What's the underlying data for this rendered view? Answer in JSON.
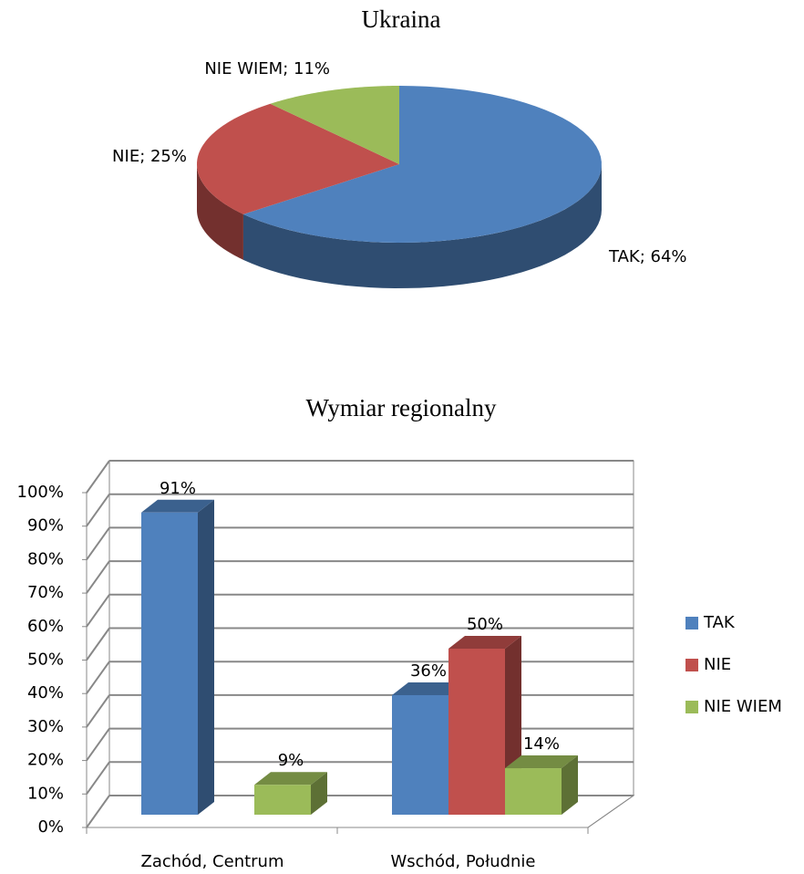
{
  "chart_data": [
    {
      "type": "pie",
      "title": "Ukraina",
      "categories": [
        "TAK",
        "NIE",
        "NIE WIEM"
      ],
      "values": [
        64,
        25,
        11
      ],
      "value_labels": [
        "TAK; 64%",
        "NIE; 25%",
        "NIE WIEM; 11%"
      ],
      "colors": [
        "#4f81bd",
        "#c0504d",
        "#9bbb59"
      ]
    },
    {
      "type": "bar",
      "title": "Wymiar regionalny",
      "categories": [
        "Zachód, Centrum",
        "Wschód, Południe"
      ],
      "series": [
        {
          "name": "TAK",
          "color": "#4f81bd",
          "values": [
            91,
            36
          ],
          "value_labels": [
            "91%",
            "36%"
          ]
        },
        {
          "name": "NIE",
          "color": "#c0504d",
          "values": [
            null,
            50
          ],
          "value_labels": [
            null,
            "50%"
          ]
        },
        {
          "name": "NIE WIEM",
          "color": "#9bbb59",
          "values": [
            9,
            14
          ],
          "value_labels": [
            "9%",
            "14%"
          ]
        }
      ],
      "ylim": [
        0,
        100
      ],
      "yticks": [
        {
          "value": 0,
          "label": "0%"
        },
        {
          "value": 10,
          "label": "10%"
        },
        {
          "value": 20,
          "label": "20%"
        },
        {
          "value": 30,
          "label": "30%"
        },
        {
          "value": 40,
          "label": "40%"
        },
        {
          "value": 50,
          "label": "50%"
        },
        {
          "value": 60,
          "label": "60%"
        },
        {
          "value": 70,
          "label": "70%"
        },
        {
          "value": 80,
          "label": "80%"
        },
        {
          "value": 90,
          "label": "90%"
        },
        {
          "value": 100,
          "label": "100%"
        }
      ],
      "grid": true,
      "legend": "right"
    }
  ]
}
